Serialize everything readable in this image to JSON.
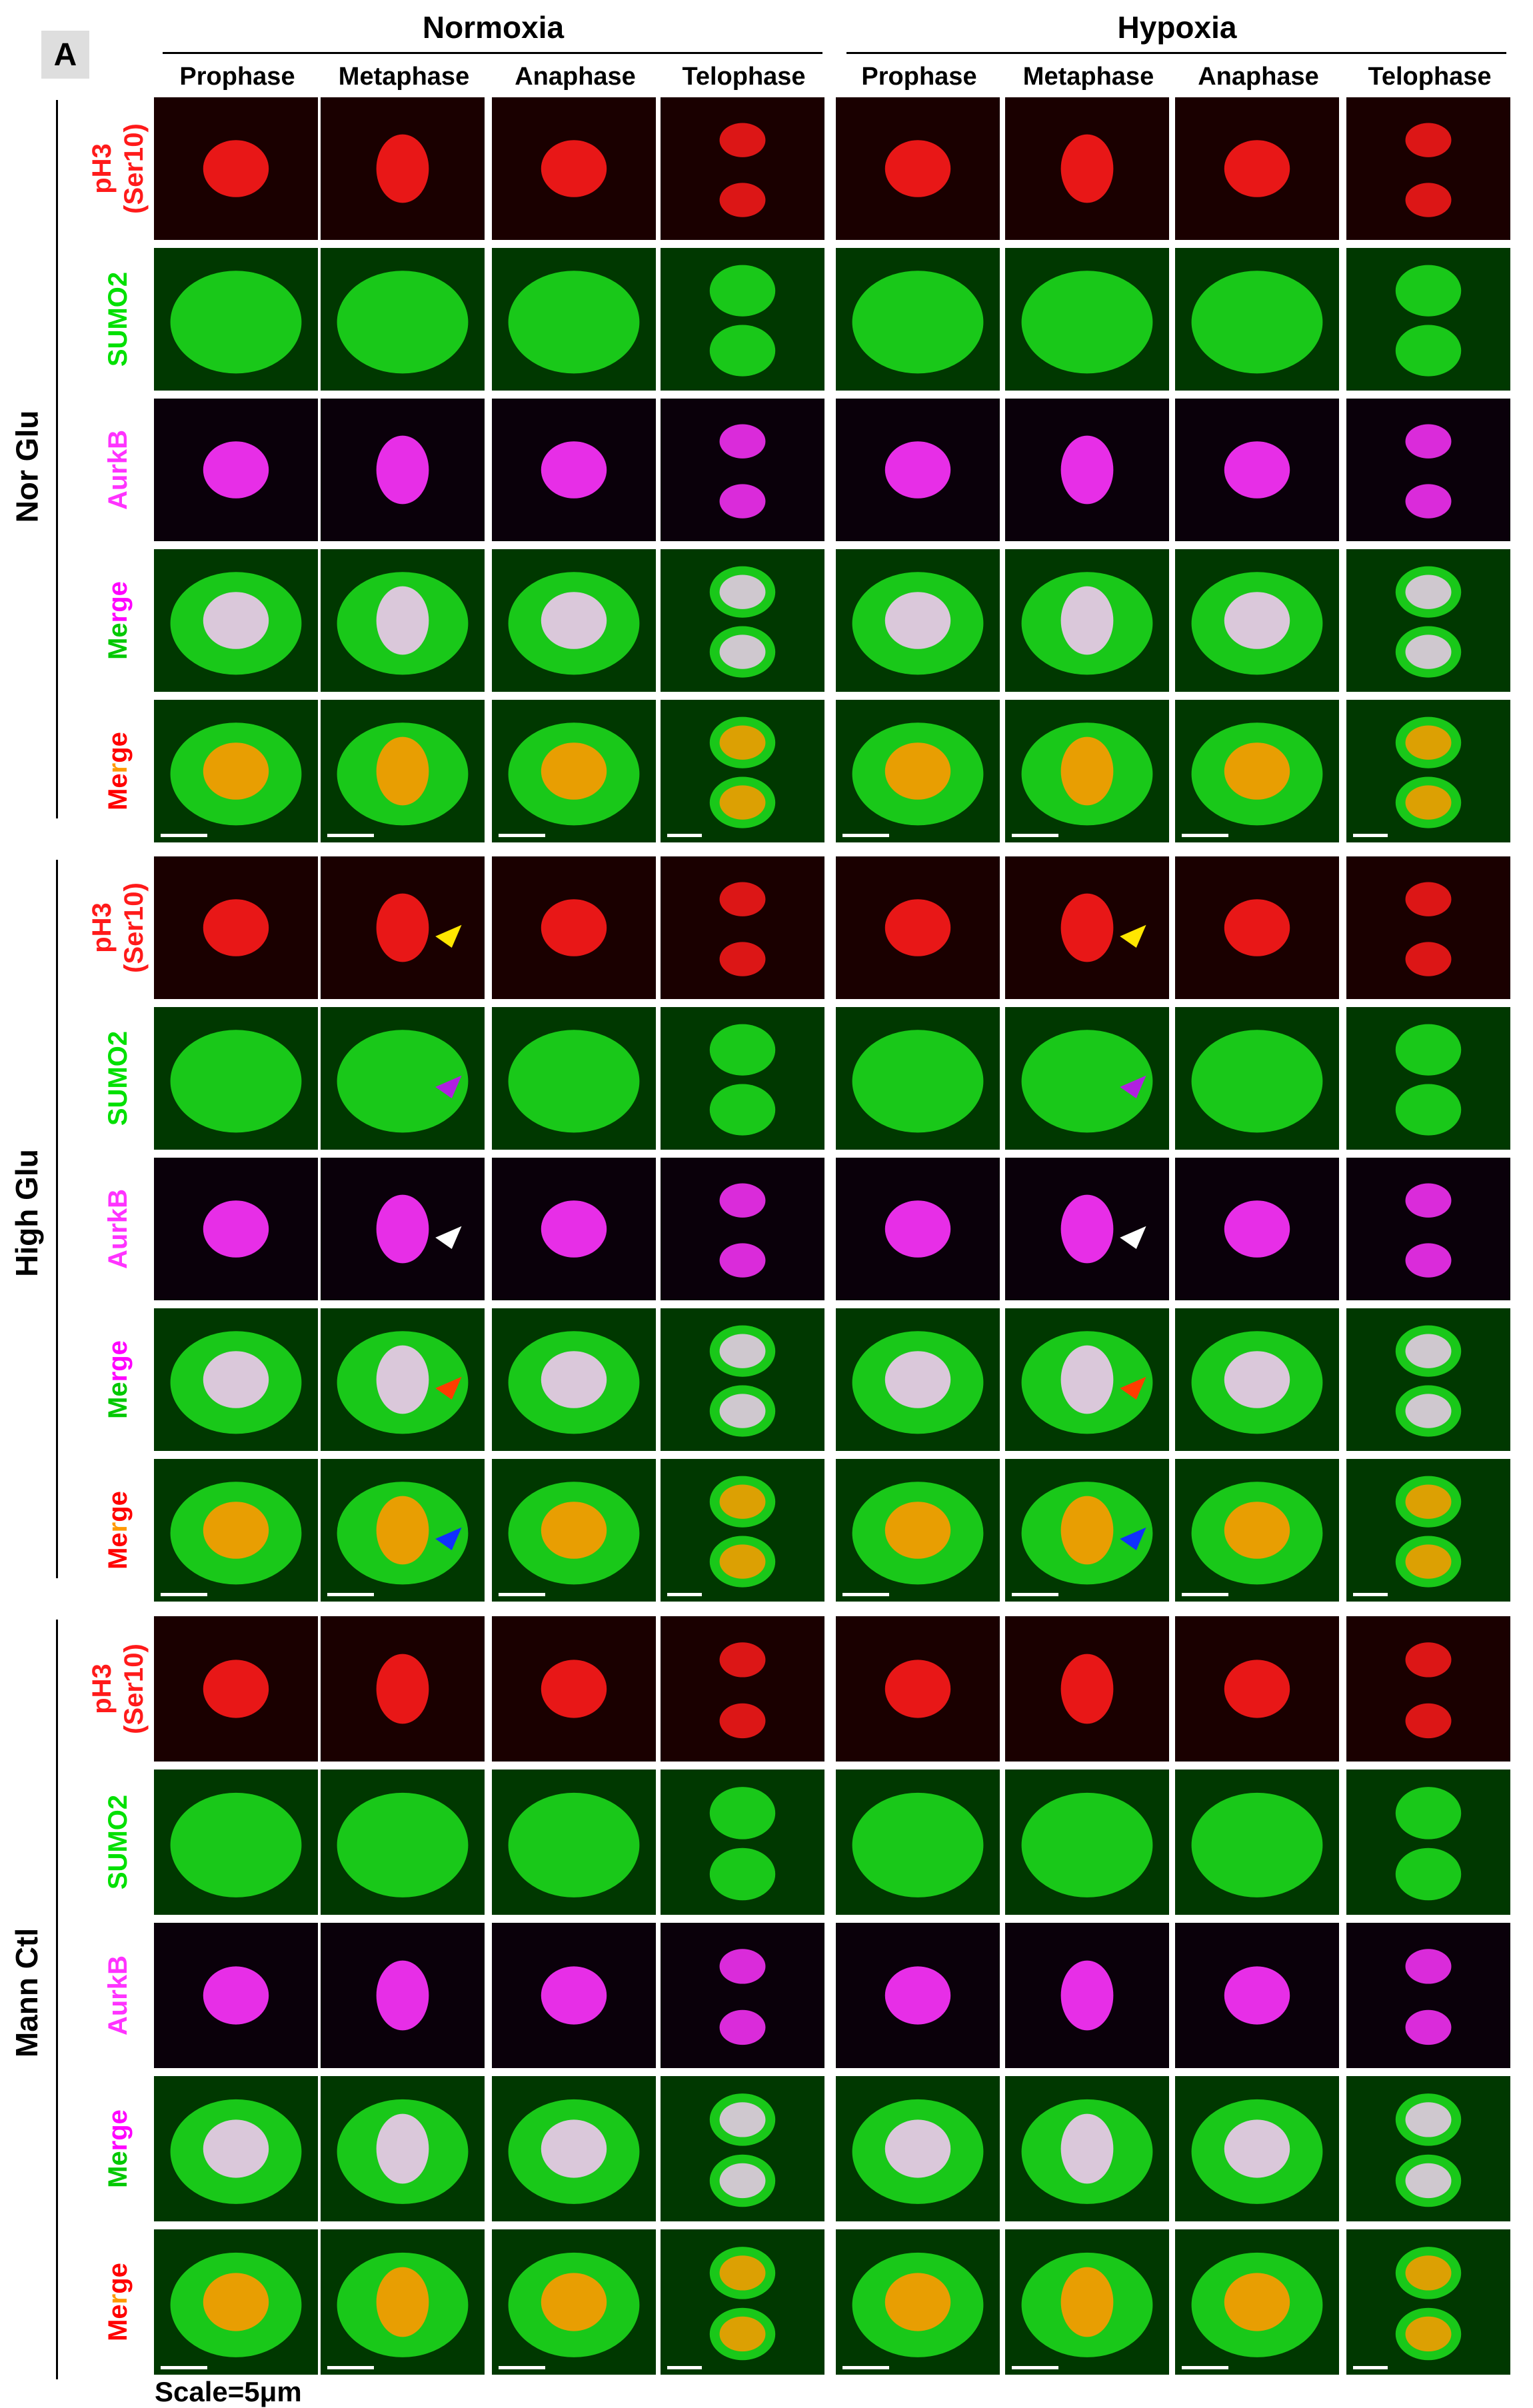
{
  "figure": {
    "panel_label": "A",
    "conditions": [
      "Normoxia",
      "Hypoxia"
    ],
    "phases": [
      "Prophase",
      "Metaphase",
      "Anaphase",
      "Telophase",
      "Prophase",
      "Metaphase",
      "Anaphase",
      "Telophase"
    ],
    "groups": [
      "Nor Glu",
      "High Glu",
      "Mann Ctl"
    ],
    "scale_text": "Scale=5μm"
  },
  "channels": [
    {
      "label_line1": "pH3",
      "label_line2": "(Ser10)",
      "channel": "pH3 (Ser10)",
      "color": "#ff1a1a",
      "background": "#1a0000"
    },
    {
      "label_line1": "SUMO2",
      "label_line2": "",
      "channel": "SUMO2",
      "color": "#00e000",
      "background": "#003800"
    },
    {
      "label_line1": "AurkB",
      "label_line2": "",
      "channel": "AurkB",
      "color": "#ff33ff",
      "background": "#0a000a"
    },
    {
      "label_line1": "Merge",
      "label_line2": "",
      "channel": "Merge SUMO2/AurkB",
      "color": "#f0c8f0",
      "background": "#003800"
    },
    {
      "label_line1": "Merge",
      "label_line2": "",
      "channel": "Merge SUMO2/pH3",
      "color": "#ff9900",
      "background": "#003800"
    }
  ],
  "merge_label_letters": [
    {
      "text": "M",
      "color": "#00c800"
    },
    {
      "text": "e",
      "color": "#00c800"
    },
    {
      "text": "r",
      "color": "#ff00ff"
    },
    {
      "text": "g",
      "color": "#ff00ff"
    },
    {
      "text": "e",
      "color": "#ff00ff"
    }
  ],
  "merge2_label_letters": [
    {
      "text": "M",
      "color": "#ff0000"
    },
    {
      "text": "e",
      "color": "#ff0000"
    },
    {
      "text": "r",
      "color": "#ff9900"
    },
    {
      "text": "g",
      "color": "#ff0000"
    },
    {
      "text": "e",
      "color": "#ff0000"
    }
  ],
  "arrowheads": [
    {
      "group": "High Glu",
      "channel": "pH3 (Ser10)",
      "condition": "Normoxia",
      "phase": "Metaphase",
      "color": "#ffe600"
    },
    {
      "group": "High Glu",
      "channel": "pH3 (Ser10)",
      "condition": "Hypoxia",
      "phase": "Metaphase",
      "color": "#ffe600"
    },
    {
      "group": "High Glu",
      "channel": "SUMO2",
      "condition": "Normoxia",
      "phase": "Metaphase",
      "color": "#b020e0"
    },
    {
      "group": "High Glu",
      "channel": "SUMO2",
      "condition": "Hypoxia",
      "phase": "Metaphase",
      "color": "#b020e0"
    },
    {
      "group": "High Glu",
      "channel": "AurkB",
      "condition": "Normoxia",
      "phase": "Metaphase",
      "color": "#ffffff"
    },
    {
      "group": "High Glu",
      "channel": "AurkB",
      "condition": "Hypoxia",
      "phase": "Metaphase",
      "color": "#ffffff"
    },
    {
      "group": "High Glu",
      "channel": "Merge SUMO2/AurkB",
      "condition": "Normoxia",
      "phase": "Metaphase",
      "color": "#ff3c00"
    },
    {
      "group": "High Glu",
      "channel": "Merge SUMO2/AurkB",
      "condition": "Hypoxia",
      "phase": "Metaphase",
      "color": "#ff3c00"
    },
    {
      "group": "High Glu",
      "channel": "Merge SUMO2/pH3",
      "condition": "Normoxia",
      "phase": "Metaphase",
      "color": "#1030ff"
    },
    {
      "group": "High Glu",
      "channel": "Merge SUMO2/pH3",
      "condition": "Hypoxia",
      "phase": "Metaphase",
      "color": "#1030ff"
    }
  ]
}
